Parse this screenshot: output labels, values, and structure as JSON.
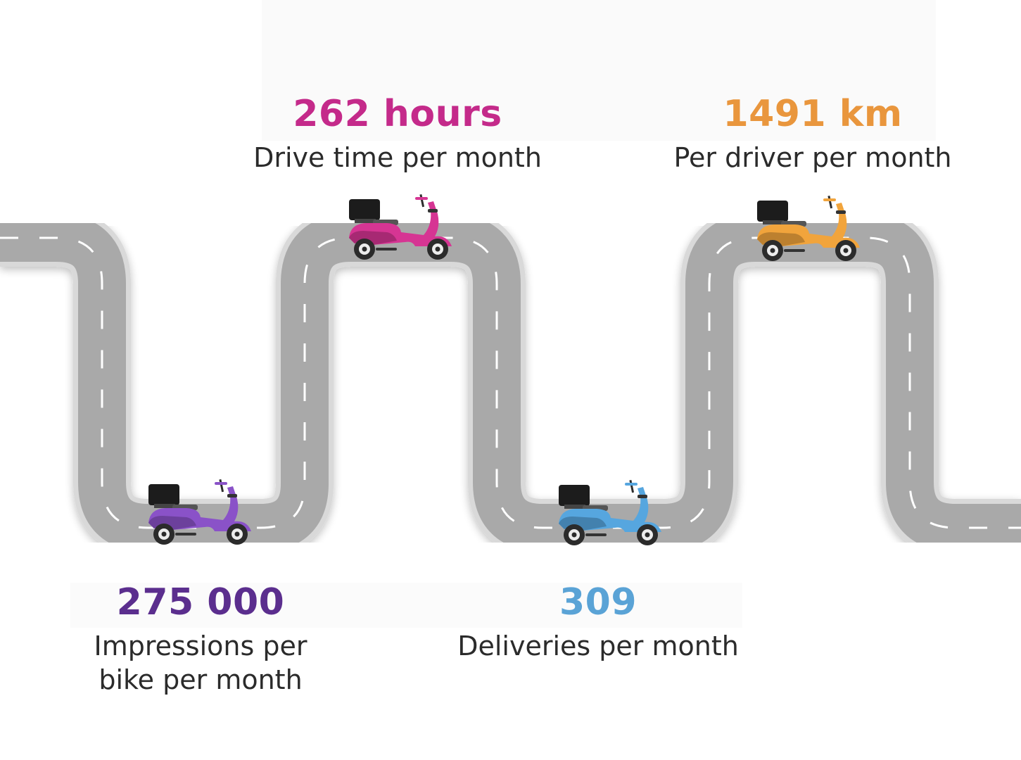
{
  "stats": [
    {
      "value": "262 hours",
      "label": "Drive time per month",
      "color": "#c42a8a"
    },
    {
      "value": "1491 km",
      "label": "Per driver per month",
      "color": "#e9963d"
    },
    {
      "value": "275 000",
      "label": "Impressions per\nbike per month",
      "color": "#5b2e8e"
    },
    {
      "value": "309",
      "label": "Deliveries per month",
      "color": "#5aa3d6"
    }
  ],
  "scooters": [
    {
      "name": "scooter-magenta",
      "color": "#d63593"
    },
    {
      "name": "scooter-orange",
      "color": "#f1a43c"
    },
    {
      "name": "scooter-purple",
      "color": "#8a52c8"
    },
    {
      "name": "scooter-blue",
      "color": "#56a6df"
    }
  ],
  "road": {
    "border_color": "#d9d9d9",
    "surface_color": "#a9a9a9",
    "line_color": "#ffffff"
  }
}
